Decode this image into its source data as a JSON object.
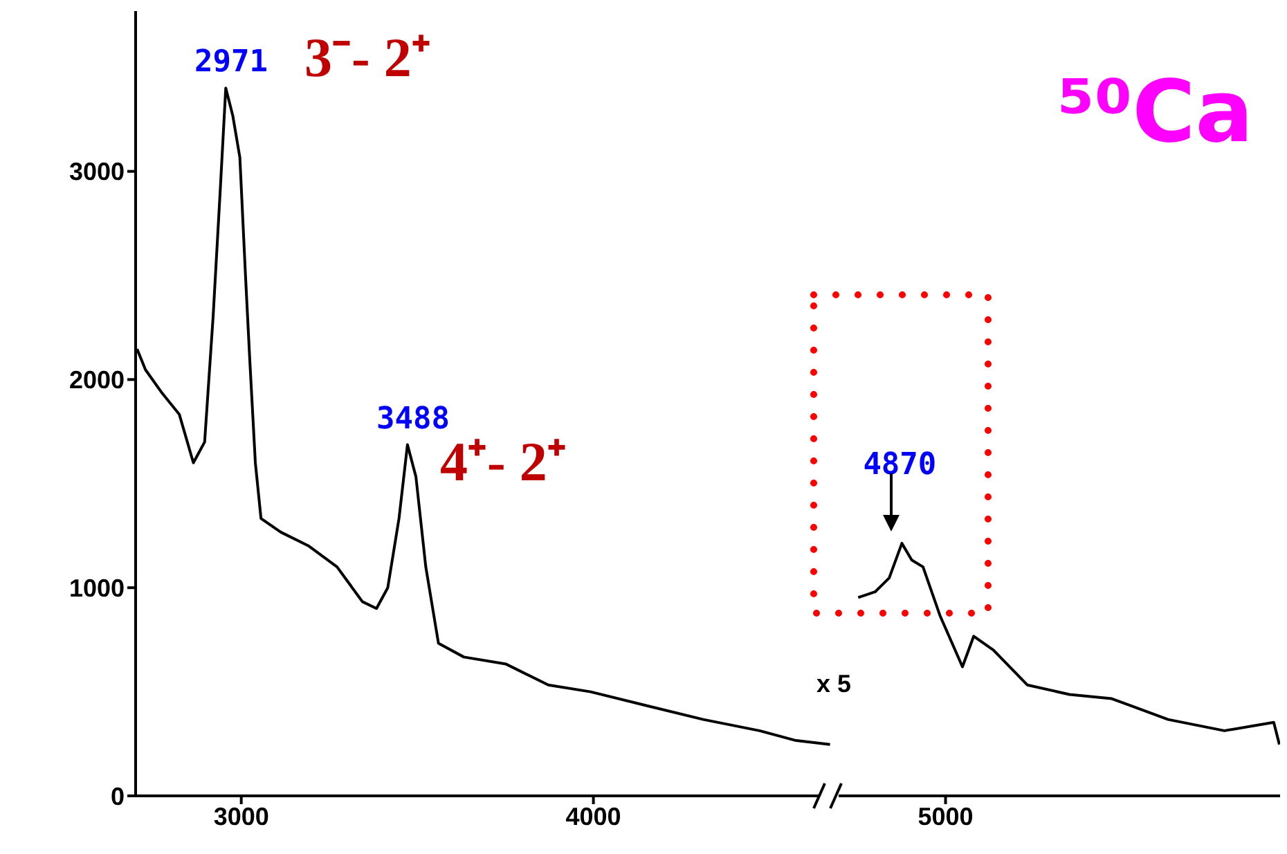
{
  "chart_data": {
    "type": "line",
    "xlim": [
      2700,
      5950
    ],
    "xticks": [
      3000,
      4000,
      5000
    ],
    "ylim": [
      0,
      3770
    ],
    "yticks": [
      0,
      1000,
      2000,
      3000
    ],
    "grid": false,
    "legend": false,
    "marker": "none",
    "series": [
      {
        "color": "#000000",
        "x": [
          2704,
          2728,
          2776,
          2824,
          2864,
          2896,
          2920,
          2940,
          2956,
          2976,
          2996,
          3012,
          3024,
          3040,
          3056,
          3112,
          3192,
          3272,
          3344,
          3384,
          3416,
          3448,
          3472,
          3496,
          3524,
          3560,
          3632,
          3752,
          3872,
          3992,
          4152,
          4312,
          4472,
          4572,
          4672
        ],
        "values": [
          2147,
          2047,
          1933,
          1833,
          1600,
          1700,
          2300,
          2900,
          3400,
          3267,
          3067,
          2500,
          2100,
          1600,
          1333,
          1267,
          1200,
          1100,
          933,
          900,
          1000,
          1333,
          1687,
          1533,
          1100,
          733,
          667,
          633,
          533,
          500,
          433,
          367,
          313,
          267,
          247
        ]
      },
      {
        "color": "#000000",
        "x": [
          4752,
          4800,
          4840,
          4876,
          4904,
          4936,
          4984,
          5048,
          5080,
          5136,
          5232,
          5352,
          5472,
          5632,
          5792,
          5932,
          5948
        ],
        "values": [
          953,
          980,
          1047,
          1213,
          1133,
          1100,
          867,
          620,
          767,
          700,
          533,
          487,
          467,
          367,
          313,
          353,
          247
        ]
      }
    ],
    "annotations": [
      {
        "text": "2971",
        "x": 2971,
        "y": 3400
      },
      {
        "text": "3488",
        "x": 3488,
        "y": 1687
      },
      {
        "text": "4870",
        "x": 4870,
        "y": 1213
      },
      "3⁻- 2⁺",
      "4⁺- 2⁺",
      "x 5",
      "⁵⁰Ca"
    ]
  }
}
